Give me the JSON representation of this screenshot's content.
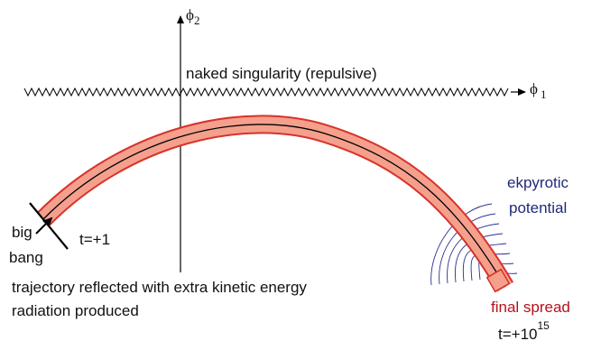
{
  "axes": {
    "phi2_symbol": "ϕ",
    "phi2_subscript": "2",
    "phi1_symbol": "ϕ",
    "phi1_subscript": "1"
  },
  "singularity_label": "naked singularity (repulsive)",
  "ekpyrotic": {
    "line1": "ekpyrotic",
    "line2": "potential",
    "color": "#1f2a78"
  },
  "big_bang": {
    "line1": "big",
    "line2": "bang"
  },
  "time_start": "t=+1",
  "reflection_note": {
    "line1": "trajectory reflected with extra kinetic energy",
    "line2": "radiation produced"
  },
  "final_spread": {
    "label": "final spread",
    "color": "#b5121b"
  },
  "time_end": {
    "base": "t=+10",
    "exponent": "15"
  },
  "colors": {
    "band_fill": "#f4a08c",
    "band_edge": "#d8322a",
    "trajectory": "#000000",
    "contours": "#2a2f8f"
  }
}
